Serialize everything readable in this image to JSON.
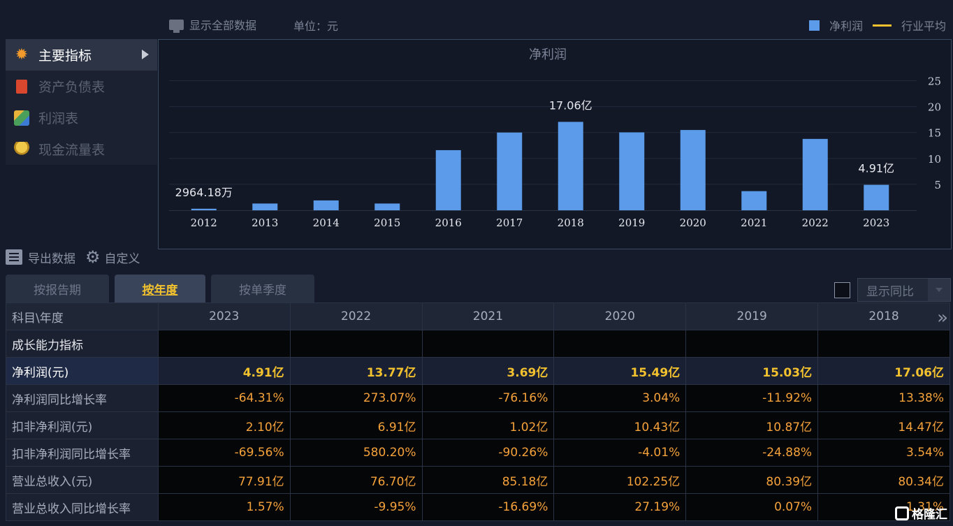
{
  "topbar": {
    "show_all_label": "显示全部数据",
    "unit_label": "单位：元",
    "legend_bar_label": "净利润",
    "legend_line_label": "行业平均"
  },
  "menu": {
    "items": [
      {
        "label": "主要指标",
        "icon": "sun-icon"
      },
      {
        "label": "资产负债表",
        "icon": "document-icon"
      },
      {
        "label": "利润表",
        "icon": "cube-icon"
      },
      {
        "label": "现金流量表",
        "icon": "coins-icon"
      }
    ]
  },
  "chart_data": {
    "type": "bar",
    "title": "净利润",
    "categories": [
      "2012",
      "2013",
      "2014",
      "2015",
      "2016",
      "2017",
      "2018",
      "2019",
      "2020",
      "2021",
      "2022",
      "2023"
    ],
    "values": [
      0.296418,
      1.3,
      1.9,
      1.3,
      11.6,
      15.0,
      17.06,
      15.03,
      15.49,
      3.69,
      13.77,
      4.91
    ],
    "value_unit": "亿",
    "ylim": [
      0,
      27.5
    ],
    "yticks": [
      5,
      10,
      15,
      20,
      25
    ],
    "data_labels": [
      {
        "category": "2012",
        "text": "2964.18万"
      },
      {
        "category": "2018",
        "text": "17.06亿"
      },
      {
        "category": "2023",
        "text": "4.91亿"
      }
    ],
    "bar_color": "#5b9bea",
    "y_axis_side": "right",
    "grid": true
  },
  "toolbar": {
    "export_label": "导出数据",
    "custom_label": "自定义"
  },
  "tabs": [
    {
      "label": "按报告期"
    },
    {
      "label": "按年度"
    },
    {
      "label": "按单季度"
    }
  ],
  "yoy": {
    "label": "显示同比"
  },
  "table": {
    "header_first": "科目\\年度",
    "years": [
      "2023",
      "2022",
      "2021",
      "2020",
      "2019",
      "2018"
    ],
    "more_icon": "double-chevron-right-icon",
    "section": "成长能力指标",
    "rows": [
      {
        "label": "净利润(元)",
        "values": [
          "4.91亿",
          "13.77亿",
          "3.69亿",
          "15.49亿",
          "15.03亿",
          "17.06亿"
        ]
      },
      {
        "label": "净利润同比增长率",
        "values": [
          "-64.31%",
          "273.07%",
          "-76.16%",
          "3.04%",
          "-11.92%",
          "13.38%"
        ]
      },
      {
        "label": "扣非净利润(元)",
        "values": [
          "2.10亿",
          "6.91亿",
          "1.02亿",
          "10.43亿",
          "10.87亿",
          "14.47亿"
        ]
      },
      {
        "label": "扣非净利润同比增长率",
        "values": [
          "-69.56%",
          "580.20%",
          "-90.26%",
          "-4.01%",
          "-24.88%",
          "3.54%"
        ]
      },
      {
        "label": "营业总收入(元)",
        "values": [
          "77.91亿",
          "76.70亿",
          "85.18亿",
          "102.25亿",
          "80.39亿",
          "80.34亿"
        ]
      },
      {
        "label": "营业总收入同比增长率",
        "values": [
          "1.57%",
          "-9.95%",
          "-16.69%",
          "27.19%",
          "0.07%",
          "1.31%"
        ]
      }
    ]
  },
  "watermark": {
    "text": "格隆汇"
  },
  "colors": {
    "accent": "#f2c12e",
    "value": "#f5a23b",
    "bar": "#5b9bea"
  }
}
